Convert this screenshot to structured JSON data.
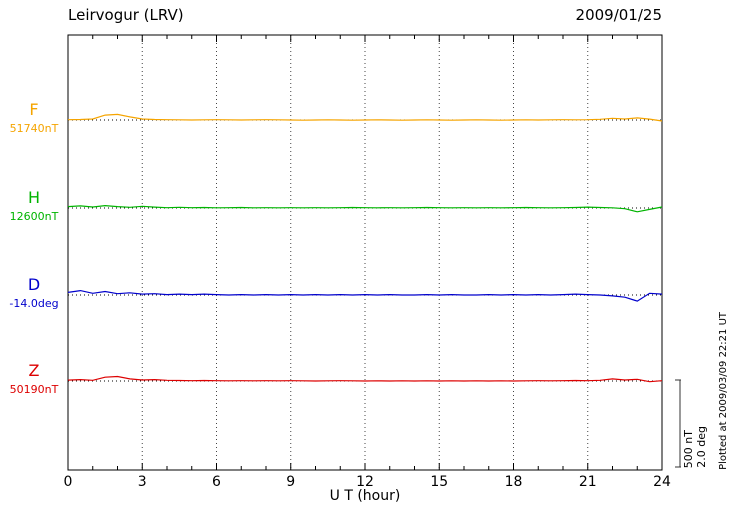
{
  "header": {
    "title": "Leirvogur (LRV)",
    "date": "2009/01/25"
  },
  "chart_data": {
    "type": "line",
    "title": "Leirvogur (LRV)",
    "date": "2009/01/25",
    "xlabel": "U T (hour)",
    "x_range": [
      0,
      24
    ],
    "x_ticks": [
      0,
      3,
      6,
      9,
      12,
      15,
      18,
      21,
      24
    ],
    "x_step_hours": 0.5,
    "grid": "dotted-vertical-at-3h",
    "legend_position": "left-of-traces",
    "plotted_at": "Plotted at 2009/03/09 22:21 UT",
    "scale_bar": {
      "nT_label": "500 nT",
      "deg_label": "2.0 deg",
      "nT_value": 500,
      "deg_value": 2.0
    },
    "series": [
      {
        "name": "F",
        "label": "F",
        "value_label": "51740nT",
        "baseline_value": 51740,
        "unit": "nT",
        "color": "#f5a400",
        "deviations": [
          2,
          3,
          6,
          28,
          32,
          18,
          6,
          3,
          2,
          1,
          0,
          1,
          2,
          1,
          0,
          1,
          2,
          1,
          0,
          -1,
          0,
          1,
          0,
          -1,
          0,
          1,
          0,
          -1,
          0,
          1,
          0,
          -1,
          0,
          1,
          0,
          -1,
          0,
          1,
          0,
          1,
          2,
          1,
          2,
          4,
          10,
          6,
          12,
          5,
          -6
        ]
      },
      {
        "name": "H",
        "label": "H",
        "value_label": "12600nT",
        "baseline_value": 12600,
        "unit": "nT",
        "color": "#00b400",
        "deviations": [
          8,
          12,
          6,
          14,
          8,
          4,
          10,
          5,
          2,
          4,
          2,
          3,
          1,
          2,
          3,
          1,
          2,
          1,
          2,
          1,
          2,
          1,
          2,
          3,
          2,
          1,
          2,
          1,
          2,
          3,
          2,
          1,
          2,
          1,
          2,
          1,
          2,
          3,
          2,
          1,
          2,
          3,
          5,
          3,
          1,
          -4,
          -22,
          -8,
          6
        ]
      },
      {
        "name": "D",
        "label": "D",
        "value_label": "-14.0deg",
        "baseline_value": -14.0,
        "unit": "deg",
        "color": "#0000cc",
        "deviations": [
          0.06,
          0.1,
          0.04,
          0.08,
          0.03,
          0.05,
          0.02,
          0.03,
          0.01,
          0.02,
          0.01,
          0.02,
          0.01,
          0,
          0.01,
          0,
          0.01,
          0,
          0.01,
          0,
          0.01,
          0,
          0.01,
          0,
          0.01,
          0,
          0.01,
          0,
          0,
          0.01,
          0,
          0.01,
          0,
          0,
          0.01,
          0,
          0.01,
          0,
          0.01,
          0,
          0.01,
          0.02,
          0.01,
          0,
          -0.02,
          -0.05,
          -0.14,
          0.04,
          0.02
        ]
      },
      {
        "name": "Z",
        "label": "Z",
        "value_label": "50190nT",
        "baseline_value": 50190,
        "unit": "nT",
        "color": "#dd0000",
        "deviations": [
          5,
          8,
          4,
          22,
          26,
          12,
          6,
          8,
          4,
          3,
          2,
          3,
          2,
          1,
          2,
          1,
          2,
          1,
          2,
          1,
          0,
          1,
          2,
          1,
          0,
          1,
          0,
          1,
          0,
          1,
          0,
          1,
          0,
          1,
          0,
          1,
          0,
          1,
          2,
          1,
          2,
          3,
          2,
          4,
          12,
          6,
          10,
          -4,
          2
        ]
      }
    ]
  }
}
